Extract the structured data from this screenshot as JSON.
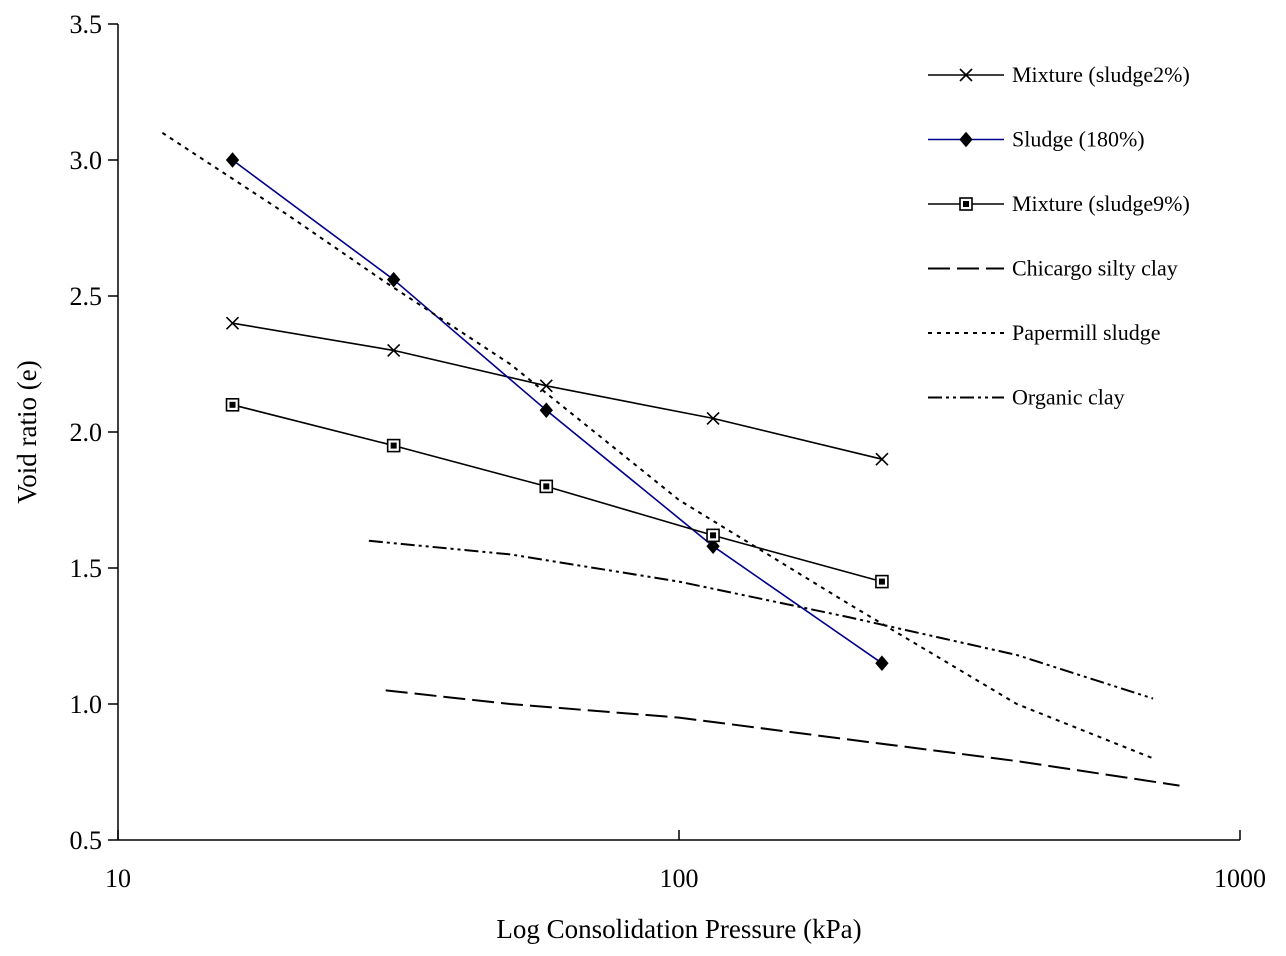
{
  "chart_data": {
    "type": "line",
    "title": "",
    "xlabel": "Log Consolidation Pressure (kPa)",
    "ylabel": "Void ratio (e)",
    "xscale": "log",
    "xlim": [
      10,
      1000
    ],
    "ylim": [
      0.5,
      3.5
    ],
    "x_ticks": [
      "10",
      "100",
      "1000"
    ],
    "y_ticks": [
      "0.5",
      "1.0",
      "1.5",
      "2.0",
      "2.5",
      "3.0",
      "3.5"
    ],
    "grid": false,
    "legend_position": "top-right",
    "series": [
      {
        "name": "Mixture (sludge2%)",
        "color": "#000000",
        "line_style": "solid",
        "marker": "x",
        "x": [
          16,
          31,
          58,
          115,
          230
        ],
        "y": [
          2.4,
          2.3,
          2.17,
          2.05,
          1.9
        ]
      },
      {
        "name": "Sludge (180%)",
        "color": "#00008b",
        "line_style": "solid",
        "marker": "diamond",
        "x": [
          16,
          31,
          58,
          115,
          230
        ],
        "y": [
          3.0,
          2.56,
          2.08,
          1.58,
          1.15
        ]
      },
      {
        "name": "Mixture (sludge9%)",
        "color": "#000000",
        "line_style": "solid",
        "marker": "square",
        "x": [
          16,
          31,
          58,
          115,
          230
        ],
        "y": [
          2.1,
          1.95,
          1.8,
          1.62,
          1.45
        ]
      },
      {
        "name": "Chicargo silty clay",
        "color": "#000000",
        "line_style": "long-dash",
        "marker": "none",
        "x": [
          30,
          50,
          100,
          200,
          400,
          780
        ],
        "y": [
          1.05,
          1.0,
          0.95,
          0.87,
          0.79,
          0.7
        ]
      },
      {
        "name": "Papermill sludge",
        "color": "#000000",
        "line_style": "dotted",
        "marker": "none",
        "x": [
          12,
          20,
          30,
          50,
          100,
          200,
          400,
          700
        ],
        "y": [
          3.1,
          2.8,
          2.55,
          2.25,
          1.75,
          1.37,
          1.0,
          0.8
        ]
      },
      {
        "name": "Organic clay",
        "color": "#000000",
        "line_style": "dash-dot",
        "marker": "none",
        "x": [
          28,
          50,
          100,
          200,
          400,
          700
        ],
        "y": [
          1.6,
          1.55,
          1.45,
          1.32,
          1.18,
          1.02
        ]
      }
    ]
  }
}
